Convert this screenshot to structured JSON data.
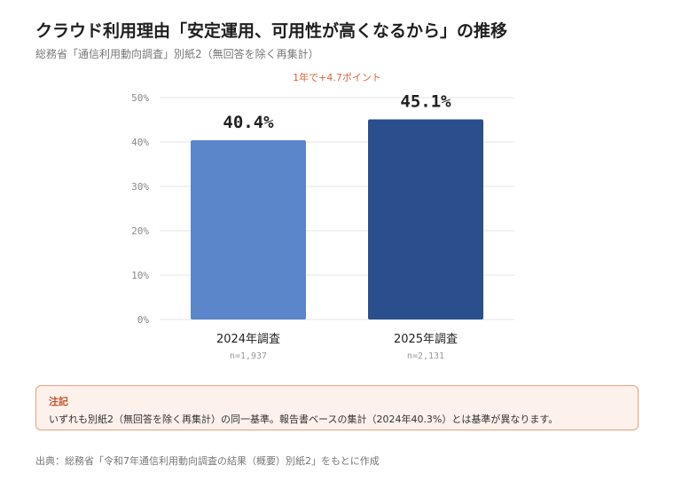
{
  "header": {
    "title": "クラウド利用理由「安定運用、可用性が高くなるから」の推移",
    "subtitle": "総務省「通信利用動向調査」別紙2（無回答を除く再集計）"
  },
  "chart_data": {
    "type": "bar",
    "categories": [
      "2024年調査",
      "2025年調査"
    ],
    "sample_sizes": [
      "n=1,937",
      "n=2,131"
    ],
    "values": [
      40.4,
      45.1
    ],
    "value_labels": [
      "40.4%",
      "45.1%"
    ],
    "bar_colors": [
      "#5b86c9",
      "#2b4e8c"
    ],
    "ylim": [
      0,
      50
    ],
    "yticks": [
      0,
      10,
      20,
      30,
      40,
      50
    ],
    "ytick_labels": [
      "0%",
      "10%",
      "20%",
      "30%",
      "40%",
      "50%"
    ],
    "grid": true,
    "annotation": "1年で+4.7ポイント",
    "annotation_color": "#d9623a"
  },
  "note": {
    "title": "注記",
    "body": "いずれも別紙2（無回答を除く再集計）の同一基準。報告書ベースの集計（2024年40.3%）とは基準が異なります。"
  },
  "source": "出典：総務省「令和7年通信利用動向調査の結果（概要）別紙2」をもとに作成"
}
